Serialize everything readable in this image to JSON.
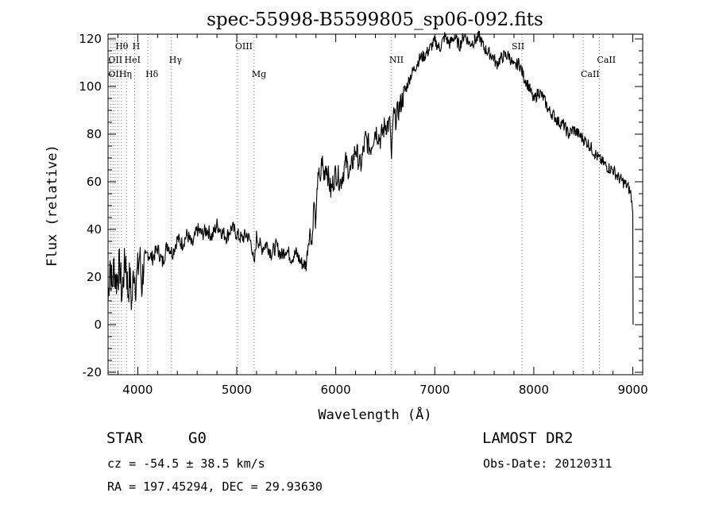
{
  "chart_data": {
    "type": "line",
    "title": "spec-55998-B5599805_sp06-092.fits",
    "xlabel": "Wavelength (Å)",
    "ylabel": "Flux (relative)",
    "xlim": [
      3700,
      9100
    ],
    "ylim": [
      -21,
      122
    ],
    "xticks": [
      4000,
      5000,
      6000,
      7000,
      8000,
      9000
    ],
    "yticks": [
      -20,
      0,
      20,
      40,
      60,
      80,
      100,
      120
    ],
    "grid": false,
    "series": [
      {
        "x": [
          3700,
          3720,
          3740,
          3760,
          3780,
          3800,
          3820,
          3840,
          3860,
          3880,
          3900,
          3920,
          3940,
          3960,
          3980,
          4000,
          4020,
          4040,
          4060,
          4080,
          4100,
          4150,
          4200,
          4250,
          4300,
          4350,
          4400,
          4450,
          4500,
          4550,
          4600,
          4650,
          4700,
          4750,
          4800,
          4850,
          4900,
          4950,
          5000,
          5050,
          5100,
          5150,
          5175,
          5200,
          5250,
          5300,
          5350,
          5400,
          5450,
          5500,
          5550,
          5600,
          5650,
          5700,
          5720,
          5740,
          5760,
          5780,
          5800,
          5820,
          5840,
          5860,
          5880,
          5900,
          5950,
          6000,
          6050,
          6100,
          6150,
          6200,
          6250,
          6300,
          6350,
          6400,
          6450,
          6500,
          6550,
          6563,
          6580,
          6600,
          6650,
          6700,
          6750,
          6800,
          6850,
          6900,
          6950,
          7000,
          7050,
          7100,
          7150,
          7200,
          7250,
          7300,
          7350,
          7400,
          7450,
          7500,
          7550,
          7600,
          7620,
          7650,
          7700,
          7750,
          7800,
          7850,
          7900,
          7950,
          8000,
          8050,
          8100,
          8150,
          8200,
          8250,
          8300,
          8350,
          8400,
          8450,
          8500,
          8550,
          8600,
          8650,
          8700,
          8750,
          8800,
          8850,
          8900,
          8950,
          8980,
          9000,
          9003
        ],
        "y": [
          10,
          28,
          15,
          25,
          18,
          22,
          24,
          12,
          22,
          28,
          14,
          20,
          8,
          24,
          18,
          22,
          30,
          16,
          26,
          22,
          30,
          28,
          32,
          26,
          34,
          30,
          36,
          34,
          38,
          33,
          40,
          38,
          40,
          37,
          42,
          39,
          37,
          41,
          38,
          36,
          38,
          34,
          24,
          37,
          32,
          34,
          30,
          33,
          29,
          32,
          28,
          30,
          26,
          25,
          34,
          39,
          34,
          52,
          40,
          66,
          58,
          70,
          62,
          68,
          56,
          64,
          60,
          68,
          64,
          74,
          66,
          78,
          74,
          82,
          78,
          84,
          84,
          67,
          88,
          86,
          92,
          98,
          104,
          108,
          112,
          113,
          116,
          119,
          116,
          121,
          118,
          121,
          117,
          122,
          118,
          119,
          121,
          116,
          114,
          112,
          109,
          111,
          113,
          113,
          108,
          110,
          104,
          100,
          94,
          98,
          95,
          90,
          88,
          85,
          84,
          80,
          82,
          80,
          78,
          76,
          73,
          70,
          68,
          66,
          65,
          62,
          60,
          58,
          55,
          47,
          0
        ]
      }
    ],
    "reference_lines": {
      "color": "#e2473b",
      "wavelengths": [
        3727,
        3750,
        3771,
        3798,
        3835,
        3889,
        3970,
        4102,
        4340,
        5007,
        5175,
        6563,
        7880,
        8498,
        8662
      ],
      "labels": [
        {
          "text": "Hθ",
          "x": 3798,
          "row": 1
        },
        {
          "text": "H",
          "x": 3970,
          "row": 1
        },
        {
          "text": "OII",
          "x": 3727,
          "row": 2
        },
        {
          "text": "HeI",
          "x": 3889,
          "row": 2
        },
        {
          "text": "Hγ",
          "x": 4340,
          "row": 2
        },
        {
          "text": "OII",
          "x": 3727,
          "row": 3
        },
        {
          "text": "Hη",
          "x": 3835,
          "row": 3
        },
        {
          "text": "Hδ",
          "x": 4102,
          "row": 3
        },
        {
          "text": "OIII",
          "x": 5007,
          "row": 1
        },
        {
          "text": "Mg",
          "x": 5175,
          "row": 3
        },
        {
          "text": "NII",
          "x": 6563,
          "row": 2
        },
        {
          "text": "SII",
          "x": 7800,
          "row": 1
        },
        {
          "text": "CaII",
          "x": 8662,
          "row": 2
        },
        {
          "text": "CaII",
          "x": 8498,
          "row": 3
        }
      ]
    }
  },
  "info": {
    "class": "STAR",
    "subclass": "G0",
    "survey": "LAMOST DR2",
    "cz": "cz = -54.5 ± 38.5 km/s",
    "obs_date": "Obs-Date: 20120311",
    "radec": "RA = 197.45294, DEC =  29.93630"
  }
}
